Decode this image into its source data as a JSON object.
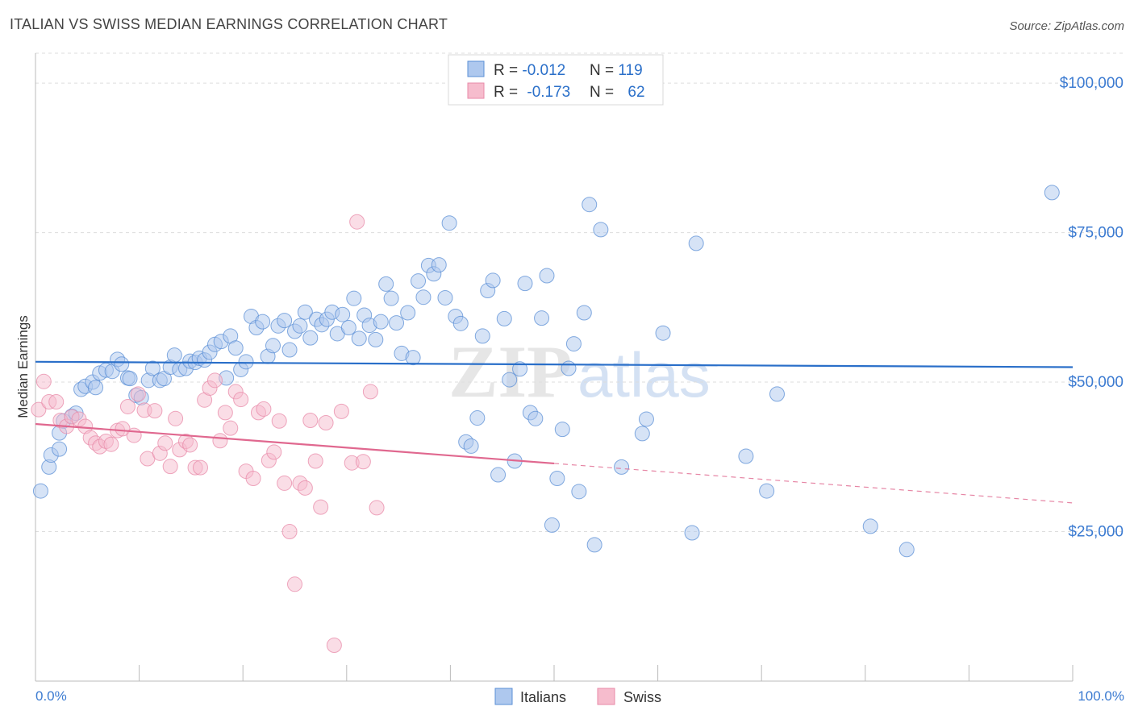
{
  "header": {
    "title": "ITALIAN VS SWISS MEDIAN EARNINGS CORRELATION CHART",
    "source": "Source: ZipAtlas.com"
  },
  "watermark": {
    "zip": "ZIP",
    "atlas": "atlas"
  },
  "legend_top": {
    "rows": [
      {
        "r_label": "R = ",
        "r_value": "-0.012",
        "n_label": "N = ",
        "n_value": "119"
      },
      {
        "r_label": "R = ",
        "r_value": "-0.173",
        "n_label": "N = ",
        "n_value": "62"
      }
    ]
  },
  "colors": {
    "blue": "#5b8fd6",
    "blue_fill": "#aec8ee",
    "blue_line": "#2a6fc9",
    "pink": "#e88aa8",
    "pink_fill": "#f6bccd",
    "pink_line": "#e0688f",
    "axis_text": "#3c7bd1",
    "grid": "#dddddd"
  },
  "chart_data": {
    "type": "scatter",
    "title": "ITALIAN VS SWISS MEDIAN EARNINGS CORRELATION CHART",
    "xlabel": "",
    "ylabel": "Median Earnings",
    "xlim": [
      0,
      100
    ],
    "ylim": [
      0,
      105000
    ],
    "x_tick_labels": [
      "0.0%",
      "100.0%"
    ],
    "y_ticks": [
      25000,
      50000,
      75000,
      100000
    ],
    "y_tick_labels": [
      "$25,000",
      "$50,000",
      "$75,000",
      "$100,000"
    ],
    "legend": [
      "Italians",
      "Swiss"
    ],
    "series": [
      {
        "name": "Italians",
        "trend": {
          "x0": 0,
          "y0": 53400,
          "x1": 100,
          "y1": 52500,
          "solid_until": 100
        },
        "points": [
          [
            0.5,
            31800
          ],
          [
            1.3,
            35800
          ],
          [
            1.5,
            37800
          ],
          [
            2.3,
            38800
          ],
          [
            2.3,
            41500
          ],
          [
            2.7,
            43500
          ],
          [
            3.5,
            44300
          ],
          [
            3.9,
            44800
          ],
          [
            4.4,
            48800
          ],
          [
            4.8,
            49300
          ],
          [
            5.5,
            50000
          ],
          [
            5.8,
            49100
          ],
          [
            6.2,
            51500
          ],
          [
            6.8,
            52000
          ],
          [
            7.4,
            51800
          ],
          [
            7.9,
            53800
          ],
          [
            8.3,
            53000
          ],
          [
            8.9,
            50700
          ],
          [
            9.1,
            50600
          ],
          [
            9.7,
            47800
          ],
          [
            10.2,
            47400
          ],
          [
            10.9,
            50300
          ],
          [
            11.3,
            52300
          ],
          [
            12.0,
            50300
          ],
          [
            12.4,
            50600
          ],
          [
            13.0,
            52500
          ],
          [
            13.4,
            54500
          ],
          [
            13.9,
            52100
          ],
          [
            14.5,
            52300
          ],
          [
            14.9,
            53500
          ],
          [
            15.4,
            53300
          ],
          [
            15.8,
            54000
          ],
          [
            16.3,
            53700
          ],
          [
            16.8,
            55000
          ],
          [
            17.3,
            56300
          ],
          [
            17.9,
            56800
          ],
          [
            18.4,
            50700
          ],
          [
            18.8,
            57700
          ],
          [
            19.3,
            55700
          ],
          [
            19.8,
            52100
          ],
          [
            20.3,
            53400
          ],
          [
            20.8,
            61000
          ],
          [
            21.3,
            59100
          ],
          [
            21.9,
            60100
          ],
          [
            22.4,
            54300
          ],
          [
            22.9,
            56100
          ],
          [
            23.4,
            59400
          ],
          [
            24.0,
            60300
          ],
          [
            24.5,
            55400
          ],
          [
            25.0,
            58500
          ],
          [
            25.5,
            59400
          ],
          [
            26.0,
            61700
          ],
          [
            26.5,
            57400
          ],
          [
            27.1,
            60500
          ],
          [
            27.6,
            59600
          ],
          [
            28.1,
            60500
          ],
          [
            28.6,
            61700
          ],
          [
            29.1,
            58100
          ],
          [
            29.6,
            61300
          ],
          [
            30.2,
            59100
          ],
          [
            30.7,
            64000
          ],
          [
            31.2,
            57300
          ],
          [
            31.7,
            61200
          ],
          [
            32.2,
            59500
          ],
          [
            32.8,
            57100
          ],
          [
            33.3,
            60100
          ],
          [
            33.8,
            66400
          ],
          [
            34.3,
            64000
          ],
          [
            34.8,
            59900
          ],
          [
            35.3,
            54800
          ],
          [
            35.9,
            61600
          ],
          [
            36.4,
            54100
          ],
          [
            36.9,
            66900
          ],
          [
            37.4,
            64200
          ],
          [
            37.9,
            69500
          ],
          [
            38.4,
            68100
          ],
          [
            38.9,
            69600
          ],
          [
            39.5,
            64100
          ],
          [
            39.9,
            76600
          ],
          [
            40.5,
            61000
          ],
          [
            41.0,
            59800
          ],
          [
            41.5,
            40000
          ],
          [
            42.0,
            39300
          ],
          [
            42.6,
            44000
          ],
          [
            43.1,
            57700
          ],
          [
            43.6,
            65300
          ],
          [
            44.1,
            67000
          ],
          [
            44.6,
            34500
          ],
          [
            45.2,
            60600
          ],
          [
            45.7,
            50400
          ],
          [
            46.2,
            36800
          ],
          [
            46.7,
            52200
          ],
          [
            47.2,
            66500
          ],
          [
            47.7,
            44900
          ],
          [
            48.2,
            43900
          ],
          [
            48.8,
            60700
          ],
          [
            49.3,
            67800
          ],
          [
            49.8,
            26100
          ],
          [
            50.3,
            33900
          ],
          [
            50.8,
            42100
          ],
          [
            51.4,
            52300
          ],
          [
            51.9,
            56400
          ],
          [
            52.4,
            31700
          ],
          [
            52.9,
            61600
          ],
          [
            53.4,
            79700
          ],
          [
            53.9,
            22800
          ],
          [
            54.5,
            75500
          ],
          [
            56.5,
            35800
          ],
          [
            58.5,
            41400
          ],
          [
            58.9,
            43800
          ],
          [
            60.5,
            58200
          ],
          [
            63.3,
            24800
          ],
          [
            63.7,
            73200
          ],
          [
            68.5,
            37600
          ],
          [
            70.5,
            31800
          ],
          [
            71.5,
            48000
          ],
          [
            80.5,
            25900
          ],
          [
            84.0,
            22000
          ],
          [
            98.0,
            81700
          ]
        ]
      },
      {
        "name": "Swiss",
        "trend": {
          "x0": 0,
          "y0": 43000,
          "x1": 100,
          "y1": 29800,
          "solid_until": 50
        },
        "points": [
          [
            0.3,
            45400
          ],
          [
            0.8,
            50100
          ],
          [
            1.3,
            46700
          ],
          [
            2.0,
            46700
          ],
          [
            2.4,
            43600
          ],
          [
            3.0,
            42600
          ],
          [
            3.5,
            44200
          ],
          [
            4.2,
            43800
          ],
          [
            4.8,
            42600
          ],
          [
            5.3,
            40700
          ],
          [
            5.8,
            39800
          ],
          [
            6.2,
            39200
          ],
          [
            6.8,
            40100
          ],
          [
            7.3,
            39600
          ],
          [
            7.9,
            41900
          ],
          [
            8.4,
            42200
          ],
          [
            8.9,
            45900
          ],
          [
            9.5,
            41100
          ],
          [
            9.9,
            48000
          ],
          [
            10.5,
            45300
          ],
          [
            10.8,
            37200
          ],
          [
            11.5,
            45200
          ],
          [
            12.0,
            38100
          ],
          [
            12.5,
            39800
          ],
          [
            13.0,
            35900
          ],
          [
            13.5,
            43900
          ],
          [
            13.9,
            38700
          ],
          [
            14.5,
            40100
          ],
          [
            14.9,
            39500
          ],
          [
            15.4,
            35700
          ],
          [
            15.9,
            35700
          ],
          [
            16.3,
            47000
          ],
          [
            16.8,
            49000
          ],
          [
            17.3,
            50300
          ],
          [
            17.8,
            40200
          ],
          [
            18.3,
            44900
          ],
          [
            18.8,
            42300
          ],
          [
            19.3,
            48400
          ],
          [
            19.8,
            47100
          ],
          [
            20.3,
            35100
          ],
          [
            21.0,
            33900
          ],
          [
            21.5,
            44900
          ],
          [
            22.0,
            45500
          ],
          [
            22.5,
            36900
          ],
          [
            23.0,
            38300
          ],
          [
            23.5,
            43500
          ],
          [
            24.0,
            33100
          ],
          [
            24.5,
            25000
          ],
          [
            25.0,
            16200
          ],
          [
            25.5,
            33100
          ],
          [
            26.0,
            32300
          ],
          [
            26.5,
            43600
          ],
          [
            27.0,
            36800
          ],
          [
            27.5,
            29100
          ],
          [
            28.0,
            43200
          ],
          [
            28.8,
            6000
          ],
          [
            29.5,
            45100
          ],
          [
            30.5,
            36500
          ],
          [
            31.0,
            76800
          ],
          [
            31.6,
            36700
          ],
          [
            32.3,
            48400
          ],
          [
            32.9,
            29000
          ]
        ]
      }
    ]
  }
}
